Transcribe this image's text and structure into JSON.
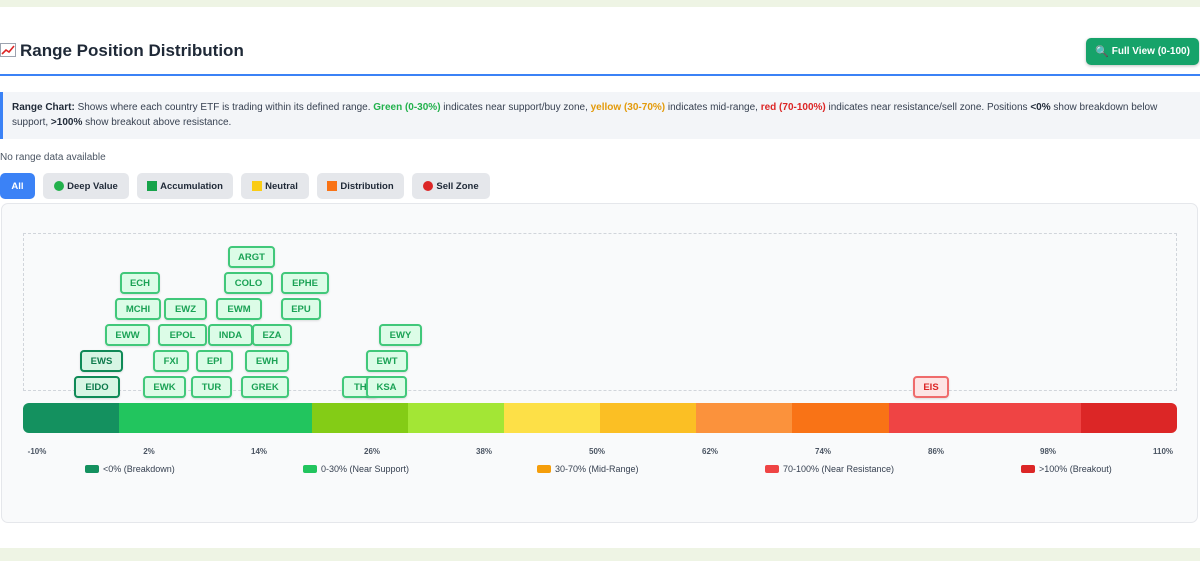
{
  "header": {
    "title": "Range Position Distribution",
    "title_icon": "chart-increasing-icon",
    "full_view_label": "Full View (0-100)",
    "full_view_icon": "magnifier-icon"
  },
  "info": {
    "lead": "Range Chart:",
    "t1": " Shows where each country ETF is trading within its defined range. ",
    "green": "Green (0-30%)",
    "t2": " indicates near support/buy zone, ",
    "yellow": "yellow (30-70%)",
    "t3": " indicates mid-range, ",
    "red": "red (70-100%)",
    "t4": " indicates near resistance/sell zone. Positions ",
    "lt0": "<0%",
    "t5": " show breakdown below support, ",
    "gt100": ">100%",
    "t6": " show breakout above resistance."
  },
  "no_data": "No range data available",
  "filters": [
    {
      "label": "All",
      "active": true,
      "icon": ""
    },
    {
      "label": "Deep Value",
      "active": false,
      "icon": "green-circle-icon",
      "color": "#22b14c"
    },
    {
      "label": "Accumulation",
      "active": false,
      "icon": "green-square-icon",
      "color": "#16a34a"
    },
    {
      "label": "Neutral",
      "active": false,
      "icon": "yellow-square-icon",
      "color": "#facc15"
    },
    {
      "label": "Distribution",
      "active": false,
      "icon": "orange-square-icon",
      "color": "#f97316"
    },
    {
      "label": "Sell Zone",
      "active": false,
      "icon": "red-circle-icon",
      "color": "#dc2626"
    }
  ],
  "etf_chips": [
    {
      "ticker": "ARGT"
    },
    {
      "ticker": "ECH"
    },
    {
      "ticker": "COLO"
    },
    {
      "ticker": "EPHE"
    },
    {
      "ticker": "MCHI"
    },
    {
      "ticker": "EWZ"
    },
    {
      "ticker": "EWM"
    },
    {
      "ticker": "EPU"
    },
    {
      "ticker": "EWW"
    },
    {
      "ticker": "EPOL"
    },
    {
      "ticker": "INDA"
    },
    {
      "ticker": "EZA"
    },
    {
      "ticker": "EWY"
    },
    {
      "ticker": "EWS"
    },
    {
      "ticker": "FXI"
    },
    {
      "ticker": "EPI"
    },
    {
      "ticker": "EWH"
    },
    {
      "ticker": "EWT"
    },
    {
      "ticker": "EIDO"
    },
    {
      "ticker": "EWK"
    },
    {
      "ticker": "TUR"
    },
    {
      "ticker": "GREK"
    },
    {
      "ticker": "TH"
    },
    {
      "ticker": "KSA"
    },
    {
      "ticker": "EIS"
    }
  ],
  "scale": {
    "segment_colors": [
      "#14915f",
      "#22c55e",
      "#22c55e",
      "#84cc16",
      "#a3e635",
      "#fde047",
      "#fbbf24",
      "#fb923c",
      "#f97316",
      "#ef4444",
      "#ef4444",
      "#dc2626"
    ],
    "ticks": [
      "-10%",
      "2%",
      "14%",
      "26%",
      "38%",
      "50%",
      "62%",
      "74%",
      "86%",
      "98%",
      "110%"
    ]
  },
  "legend": [
    {
      "label": "<0% (Breakdown)",
      "color": "#14915f"
    },
    {
      "label": "0-30% (Near Support)",
      "color": "#22c55e"
    },
    {
      "label": "30-70% (Mid-Range)",
      "color": "#f59e0b"
    },
    {
      "label": "70-100% (Near Resistance)",
      "color": "#ef4444"
    },
    {
      "label": ">100% (Breakout)",
      "color": "#dc2626"
    }
  ]
}
